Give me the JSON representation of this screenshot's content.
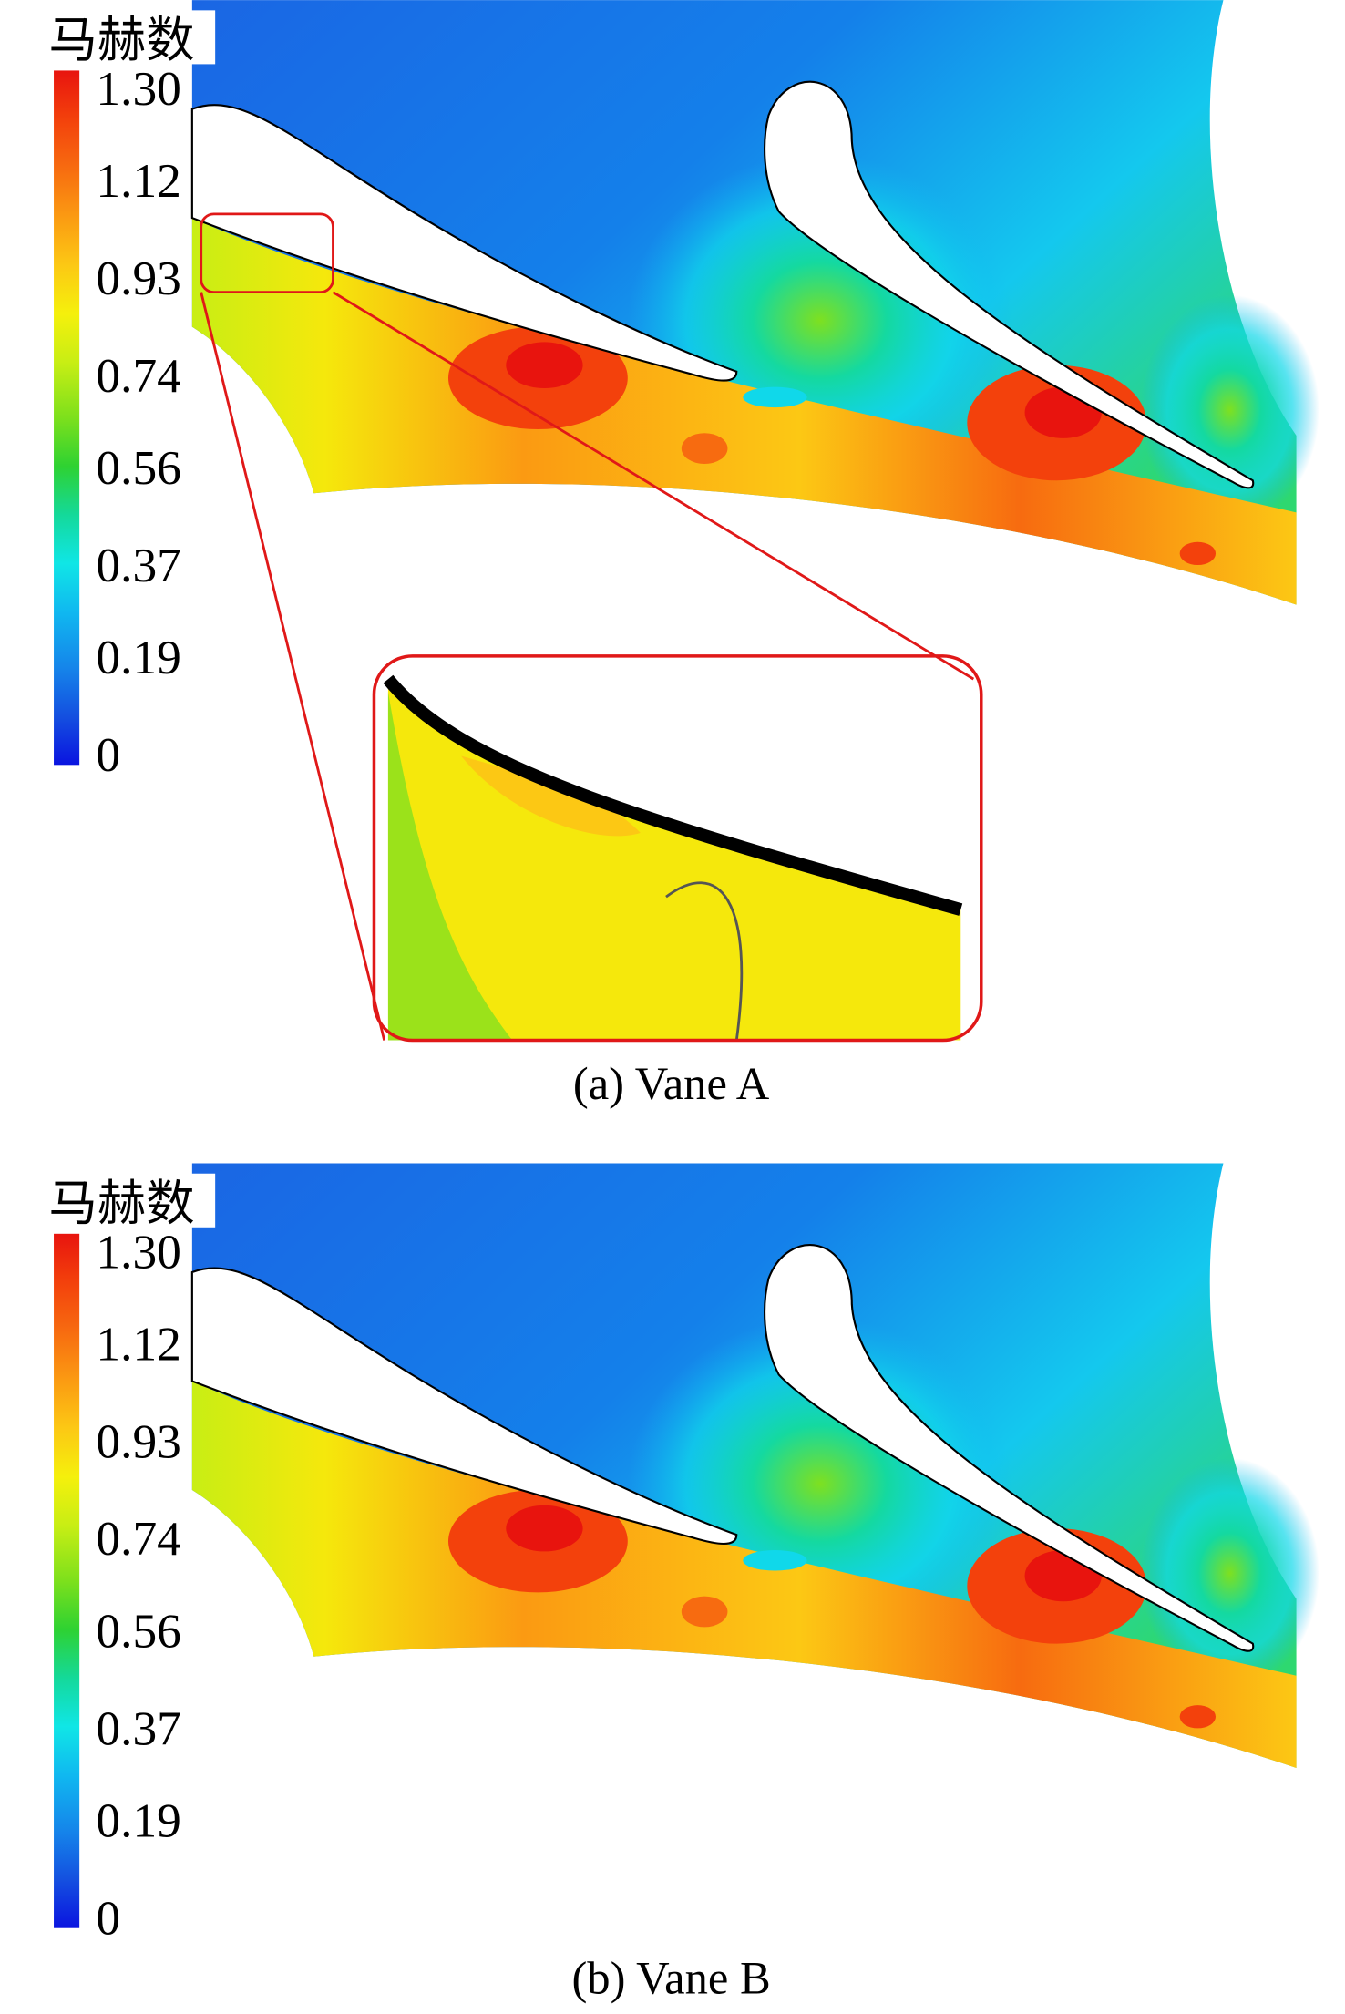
{
  "panels": [
    {
      "colorbar": {
        "title": "马赫数",
        "ticks": [
          {
            "value": 1.3,
            "label": "1.30"
          },
          1.12,
          0.93,
          0.74,
          0.56,
          0.37,
          0.19,
          0
        ]
      },
      "caption": "(a) Vane A"
    },
    {
      "colorbar": {
        "title": "马赫数",
        "ticks": [
          {
            "value": 1.3,
            "label": "1.30"
          },
          1.12,
          0.93,
          0.74,
          0.56,
          0.37,
          0.19,
          0
        ]
      },
      "caption": "(b) Vane B"
    }
  ]
}
